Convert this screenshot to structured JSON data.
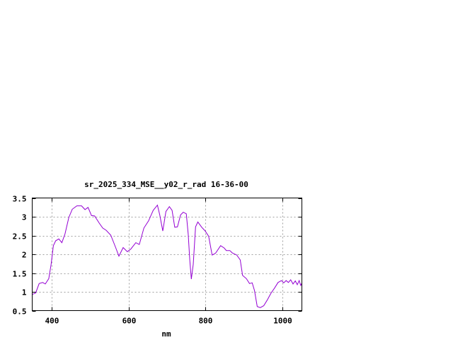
{
  "chart_data": {
    "type": "line",
    "title": "sr_2025_334_MSE__y02_r_rad 16-36-00",
    "xlabel": "nm",
    "ylabel": "",
    "xlim": [
      350,
      1050
    ],
    "ylim": [
      0.5,
      3.5
    ],
    "xticks": [
      400,
      600,
      800,
      1000
    ],
    "yticks": [
      0.5,
      1,
      1.5,
      2,
      2.5,
      3,
      3.5
    ],
    "ytick_labels": [
      "0.5",
      "1",
      "1.5",
      "2",
      "2.5",
      "3",
      "3.5"
    ],
    "xtick_labels": [
      "400",
      "600",
      "800",
      "1000"
    ],
    "grid": true,
    "line_color": "#9400d3",
    "series": [
      {
        "x": [
          350,
          359,
          368,
          377,
          384,
          393,
          399,
          405,
          411,
          419,
          427,
          435,
          445,
          454,
          466,
          478,
          487,
          495,
          504,
          512,
          524,
          533,
          542,
          554,
          567,
          575,
          586,
          597,
          606,
          619,
          628,
          640,
          652,
          664,
          675,
          681,
          689,
          697,
          706,
          713,
          720,
          727,
          735,
          742,
          750,
          755,
          759,
          763,
          768,
          774,
          780,
          790,
          799,
          808,
          817,
          826,
          839,
          848,
          854,
          863,
          869,
          881,
          890,
          896,
          906,
          914,
          921,
          927,
          934,
          942,
          951,
          960,
          970,
          979,
          988,
          997,
          1003,
          1009,
          1015,
          1021,
          1027,
          1033,
          1038,
          1043,
          1047,
          1049
        ],
        "y": [
          0.93,
          0.97,
          1.22,
          1.25,
          1.21,
          1.35,
          1.73,
          2.23,
          2.36,
          2.41,
          2.31,
          2.54,
          2.98,
          3.2,
          3.29,
          3.29,
          3.19,
          3.25,
          3.03,
          3.02,
          2.83,
          2.7,
          2.64,
          2.51,
          2.17,
          1.95,
          2.18,
          2.07,
          2.14,
          2.31,
          2.26,
          2.7,
          2.89,
          3.17,
          3.31,
          3.05,
          2.62,
          3.14,
          3.27,
          3.17,
          2.72,
          2.73,
          3.05,
          3.12,
          3.08,
          2.54,
          1.85,
          1.34,
          1.73,
          2.73,
          2.86,
          2.72,
          2.62,
          2.48,
          1.98,
          2.03,
          2.23,
          2.17,
          2.1,
          2.1,
          2.04,
          1.98,
          1.85,
          1.44,
          1.35,
          1.22,
          1.24,
          1.03,
          0.61,
          0.58,
          0.63,
          0.78,
          0.97,
          1.1,
          1.25,
          1.3,
          1.24,
          1.3,
          1.25,
          1.32,
          1.21,
          1.29,
          1.19,
          1.3,
          1.17,
          1.22
        ]
      }
    ]
  }
}
